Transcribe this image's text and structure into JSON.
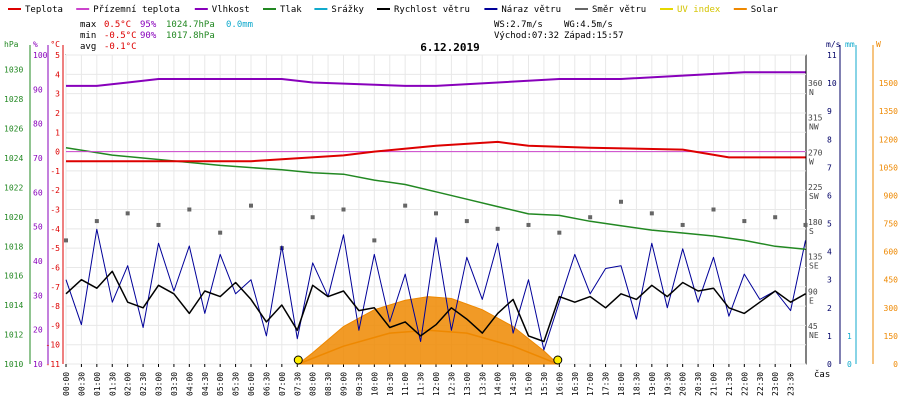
{
  "chart_data": {
    "type": "line",
    "title": "6.12.2019",
    "xlabel": "čas",
    "x_ticks": [
      "00:00",
      "00:30",
      "01:00",
      "01:30",
      "02:00",
      "02:30",
      "03:00",
      "03:30",
      "04:00",
      "04:30",
      "05:00",
      "05:30",
      "06:00",
      "06:30",
      "07:00",
      "07:30",
      "08:00",
      "08:30",
      "09:00",
      "09:30",
      "10:00",
      "10:30",
      "11:00",
      "11:30",
      "12:00",
      "12:30",
      "13:00",
      "13:30",
      "14:00",
      "14:30",
      "15:00",
      "15:30",
      "16:00",
      "16:30",
      "17:00",
      "17:30",
      "18:00",
      "18:30",
      "19:00",
      "19:30",
      "20:00",
      "20:30",
      "21:00",
      "21:30",
      "22:00",
      "22:30",
      "23:00",
      "23:30"
    ],
    "legend": [
      {
        "name": "Teplota",
        "color": "#dd0000"
      },
      {
        "name": "Přízemní teplota",
        "color": "#cc44cc"
      },
      {
        "name": "Vlhkost",
        "color": "#8800bb"
      },
      {
        "name": "Tlak",
        "color": "#228822"
      },
      {
        "name": "Srážky",
        "color": "#11aacc"
      },
      {
        "name": "Rychlost větru",
        "color": "#000000"
      },
      {
        "name": "Náraz větru",
        "color": "#000099"
      },
      {
        "name": "Směr větru",
        "color": "#666666"
      },
      {
        "name": "UV index",
        "color": "#e6d800"
      },
      {
        "name": "Solar",
        "color": "#ee8800"
      }
    ],
    "stats": {
      "max": {
        "label": "max",
        "temp": "0.5°C",
        "hum": "95%",
        "press": "1024.7hPa",
        "rain": "0.0mm"
      },
      "min": {
        "label": "min",
        "temp": "-0.5°C",
        "hum": "90%",
        "press": "1017.8hPa"
      },
      "avg": {
        "label": "avg",
        "temp": "-0.1°C"
      }
    },
    "wind_info": {
      "ws": "WS:2.7m/s",
      "wg": "WG:4.5m/s",
      "sunrise": "Východ:07:32",
      "sunset": "Západ:15:57"
    },
    "axes": {
      "hpa": {
        "unit": "hPa",
        "ticks": [
          "1030",
          "1028",
          "1026",
          "1024",
          "1022",
          "1020",
          "1018",
          "1016",
          "1014",
          "1012",
          "1010"
        ],
        "range": [
          1010,
          1031
        ]
      },
      "pct": {
        "unit": "%",
        "ticks": [
          "100",
          "90",
          "80",
          "70",
          "60",
          "50",
          "40",
          "30",
          "20",
          "10"
        ],
        "range": [
          10,
          100
        ]
      },
      "temp": {
        "unit": "°C",
        "ticks": [
          "5",
          "4",
          "3",
          "2",
          "1",
          "0",
          "-1",
          "-2",
          "-3",
          "-4",
          "-5",
          "-6",
          "-7",
          "-8",
          "-9",
          "-10",
          "-11"
        ],
        "range": [
          -11,
          5
        ]
      },
      "dir": {
        "ticks": [
          {
            "deg": "360",
            "name": "N"
          },
          {
            "deg": "315",
            "name": "NW"
          },
          {
            "deg": "270",
            "name": "W"
          },
          {
            "deg": "225",
            "name": "SW"
          },
          {
            "deg": "180",
            "name": "S"
          },
          {
            "deg": "135",
            "name": "SE"
          },
          {
            "deg": "90",
            "name": "E"
          },
          {
            "deg": "45",
            "name": "NE"
          }
        ]
      },
      "ms": {
        "unit": "m/s",
        "ticks": [
          "11",
          "10",
          "9",
          "8",
          "7",
          "6",
          "5",
          "4",
          "3",
          "2",
          "1",
          "0"
        ],
        "range": [
          0,
          11
        ]
      },
      "mm": {
        "unit": "mm",
        "ticks": [
          "1",
          "0"
        ]
      },
      "w": {
        "unit": "W",
        "ticks": [
          "1500",
          "1350",
          "1200",
          "1050",
          "900",
          "750",
          "600",
          "450",
          "300",
          "150",
          "0"
        ],
        "range": [
          0,
          1650
        ]
      }
    },
    "series": {
      "temperature": {
        "name": "Teplota",
        "x": [
          "00:00",
          "06:00",
          "07:00",
          "09:00",
          "10:00",
          "12:00",
          "14:00",
          "15:00",
          "17:00",
          "20:00",
          "21:30",
          "23:59"
        ],
        "y": [
          -0.5,
          -0.5,
          -0.4,
          -0.2,
          0.0,
          0.3,
          0.5,
          0.3,
          0.2,
          0.1,
          -0.3,
          -0.3
        ]
      },
      "ground_temperature": {
        "name": "Přízemní teplota",
        "x": [
          "00:00",
          "23:59"
        ],
        "y": [
          0.0,
          0.0
        ]
      },
      "humidity": {
        "name": "Vlhkost",
        "x": [
          "00:00",
          "01:00",
          "02:00",
          "03:00",
          "05:00",
          "07:00",
          "08:00",
          "11:00",
          "12:00",
          "14:00",
          "16:00",
          "18:00",
          "20:00",
          "22:00",
          "23:59"
        ],
        "y": [
          91,
          91,
          92,
          93,
          93,
          93,
          92,
          91,
          91,
          92,
          93,
          93,
          94,
          95,
          95
        ]
      },
      "pressure": {
        "name": "Tlak",
        "x": [
          "00:00",
          "01:30",
          "03:00",
          "05:00",
          "07:00",
          "08:00",
          "09:00",
          "10:00",
          "11:00",
          "12:00",
          "13:00",
          "14:00",
          "15:00",
          "16:00",
          "17:00",
          "18:00",
          "19:00",
          "20:00",
          "21:00",
          "22:00",
          "23:00",
          "23:59"
        ],
        "y": [
          1024.7,
          1024.2,
          1023.9,
          1023.5,
          1023.2,
          1023.0,
          1022.9,
          1022.5,
          1022.2,
          1021.7,
          1021.2,
          1020.7,
          1020.2,
          1020.1,
          1019.7,
          1019.4,
          1019.1,
          1018.9,
          1018.7,
          1018.4,
          1018.0,
          1017.8
        ]
      },
      "wind_speed": {
        "name": "Rychlost větru",
        "x": [
          "00:00",
          "00:30",
          "01:00",
          "01:30",
          "02:00",
          "02:30",
          "03:00",
          "03:30",
          "04:00",
          "04:30",
          "05:00",
          "05:30",
          "06:00",
          "06:30",
          "07:00",
          "07:30",
          "08:00",
          "08:30",
          "09:00",
          "09:30",
          "10:00",
          "10:30",
          "11:00",
          "11:30",
          "12:00",
          "12:30",
          "13:00",
          "13:30",
          "14:00",
          "14:30",
          "15:00",
          "15:30",
          "16:00",
          "16:30",
          "17:00",
          "17:30",
          "18:00",
          "18:30",
          "19:00",
          "19:30",
          "20:00",
          "20:30",
          "21:00",
          "21:30",
          "22:00",
          "22:30",
          "23:00",
          "23:30",
          "23:59"
        ],
        "y": [
          2.5,
          3.0,
          2.7,
          3.3,
          2.2,
          2.0,
          2.8,
          2.5,
          1.8,
          2.6,
          2.4,
          2.9,
          2.3,
          1.5,
          2.1,
          1.2,
          2.8,
          2.4,
          2.6,
          1.9,
          2.0,
          1.3,
          1.5,
          1.0,
          1.4,
          2.0,
          1.6,
          1.1,
          1.8,
          2.3,
          1.0,
          0.8,
          2.4,
          2.2,
          2.4,
          2.0,
          2.5,
          2.3,
          2.8,
          2.4,
          2.9,
          2.6,
          2.7,
          2.0,
          1.8,
          2.2,
          2.6,
          2.2,
          2.5
        ]
      },
      "wind_gust": {
        "name": "Náraz větru",
        "x": [
          "00:00",
          "00:30",
          "01:00",
          "01:30",
          "02:00",
          "02:30",
          "03:00",
          "03:30",
          "04:00",
          "04:30",
          "05:00",
          "05:30",
          "06:00",
          "06:30",
          "07:00",
          "07:30",
          "08:00",
          "08:30",
          "09:00",
          "09:30",
          "10:00",
          "10:30",
          "11:00",
          "11:30",
          "12:00",
          "12:30",
          "13:00",
          "13:30",
          "14:00",
          "14:30",
          "15:00",
          "15:30",
          "16:00",
          "16:30",
          "17:00",
          "17:30",
          "18:00",
          "18:30",
          "19:00",
          "19:30",
          "20:00",
          "20:30",
          "21:00",
          "21:30",
          "22:00",
          "22:30",
          "23:00",
          "23:30",
          "23:59"
        ],
        "y": [
          3.0,
          1.4,
          4.8,
          2.2,
          3.5,
          1.3,
          4.3,
          2.6,
          4.2,
          1.8,
          3.9,
          2.5,
          3.0,
          1.0,
          4.2,
          0.9,
          3.6,
          2.4,
          4.6,
          1.2,
          3.9,
          1.5,
          3.2,
          0.8,
          4.5,
          1.2,
          3.8,
          2.3,
          4.3,
          1.1,
          3.0,
          0.5,
          2.2,
          3.9,
          2.5,
          3.4,
          3.5,
          1.6,
          4.3,
          2.0,
          4.1,
          2.2,
          3.8,
          1.7,
          3.2,
          2.3,
          2.6,
          1.9,
          4.4
        ]
      },
      "wind_direction": {
        "name": "Směr větru",
        "x": [
          "00:00",
          "01:00",
          "02:00",
          "03:00",
          "04:00",
          "05:00",
          "06:00",
          "07:00",
          "08:00",
          "09:00",
          "10:00",
          "11:00",
          "12:00",
          "13:00",
          "14:00",
          "15:00",
          "16:00",
          "17:00",
          "18:00",
          "19:00",
          "20:00",
          "21:00",
          "22:00",
          "23:00",
          "23:59"
        ],
        "y": [
          160,
          185,
          195,
          180,
          200,
          170,
          205,
          150,
          190,
          200,
          160,
          205,
          195,
          185,
          175,
          180,
          170,
          190,
          210,
          195,
          180,
          200,
          185,
          190,
          180
        ]
      },
      "solar": {
        "name": "Solar",
        "x": [
          "07:32",
          "08:00",
          "09:00",
          "10:00",
          "11:00",
          "11:45",
          "12:30",
          "13:30",
          "14:30",
          "15:30",
          "15:57"
        ],
        "y": [
          0,
          60,
          200,
          290,
          340,
          360,
          350,
          290,
          200,
          70,
          0
        ]
      },
      "sun_elevation": {
        "x": [
          "07:32",
          "09:00",
          "10:30",
          "11:45",
          "13:00",
          "14:30",
          "15:57"
        ],
        "y": [
          0,
          95,
          165,
          180,
          165,
          95,
          0
        ]
      }
    }
  }
}
